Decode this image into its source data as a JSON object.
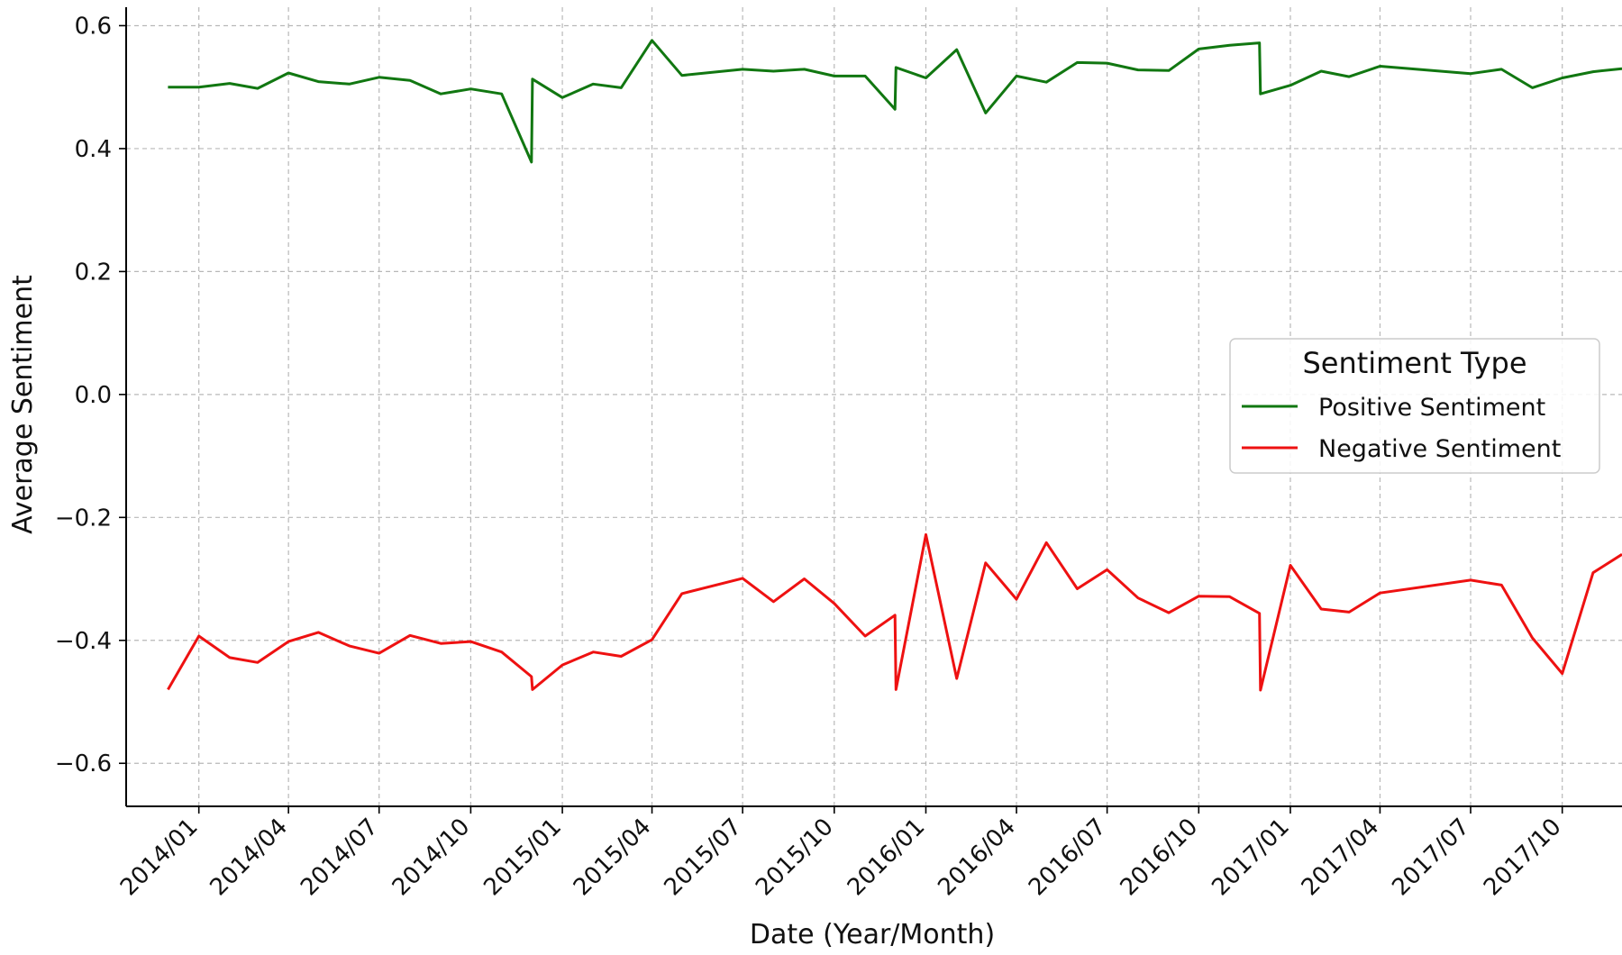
{
  "chart_data": {
    "type": "line",
    "title": "",
    "xlabel": "Date (Year/Month)",
    "ylabel": "Average Sentiment",
    "ylim": [
      -0.67,
      0.63
    ],
    "yticks": [
      0.6,
      0.4,
      0.2,
      0.0,
      -0.2,
      -0.4,
      -0.6
    ],
    "ytick_labels": [
      "0.6",
      "0.4",
      "0.2",
      "0.0",
      "−0.2",
      "−0.4",
      "−0.6"
    ],
    "xlim": [
      "2013-10-20",
      "2017-11-30"
    ],
    "xticks": [
      "2014-01-01",
      "2014-04-01",
      "2014-07-01",
      "2014-10-01",
      "2015-01-01",
      "2015-04-01",
      "2015-07-01",
      "2015-10-01",
      "2016-01-01",
      "2016-04-01",
      "2016-07-01",
      "2016-10-01",
      "2017-01-01",
      "2017-04-01",
      "2017-07-01",
      "2017-10-01"
    ],
    "xtick_labels": [
      "2014/01",
      "2014/04",
      "2014/07",
      "2014/10",
      "2015/01",
      "2015/04",
      "2015/07",
      "2015/10",
      "2016/01",
      "2016/04",
      "2016/07",
      "2016/10",
      "2017/01",
      "2017/04",
      "2017/07",
      "2017/10"
    ],
    "grid": true,
    "legend": {
      "title": "Sentiment Type",
      "placement": "center-right"
    },
    "series": [
      {
        "name": "Positive Sentiment",
        "color": "#117711",
        "points": [
          [
            "2013-12-01",
            0.5
          ],
          [
            "2014-01-01",
            0.5
          ],
          [
            "2014-02-01",
            0.506
          ],
          [
            "2014-03-01",
            0.498
          ],
          [
            "2014-04-01",
            0.523
          ],
          [
            "2014-05-01",
            0.509
          ],
          [
            "2014-06-01",
            0.505
          ],
          [
            "2014-07-01",
            0.516
          ],
          [
            "2014-08-01",
            0.511
          ],
          [
            "2014-09-01",
            0.489
          ],
          [
            "2014-10-01",
            0.497
          ],
          [
            "2014-11-01",
            0.489
          ],
          [
            "2014-12-01",
            0.378
          ],
          [
            "2014-12-02",
            0.513
          ],
          [
            "2015-01-01",
            0.483
          ],
          [
            "2015-02-01",
            0.505
          ],
          [
            "2015-03-01",
            0.499
          ],
          [
            "2015-04-01",
            0.576
          ],
          [
            "2015-05-01",
            0.519
          ],
          [
            "2015-07-01",
            0.529
          ],
          [
            "2015-08-01",
            0.526
          ],
          [
            "2015-09-01",
            0.529
          ],
          [
            "2015-10-01",
            0.518
          ],
          [
            "2015-11-01",
            0.518
          ],
          [
            "2015-12-01",
            0.464
          ],
          [
            "2015-12-02",
            0.532
          ],
          [
            "2016-01-01",
            0.515
          ],
          [
            "2016-02-01",
            0.561
          ],
          [
            "2016-03-01",
            0.458
          ],
          [
            "2016-04-01",
            0.518
          ],
          [
            "2016-05-01",
            0.508
          ],
          [
            "2016-06-01",
            0.54
          ],
          [
            "2016-07-01",
            0.539
          ],
          [
            "2016-08-01",
            0.528
          ],
          [
            "2016-09-01",
            0.527
          ],
          [
            "2016-10-01",
            0.562
          ],
          [
            "2016-11-01",
            0.568
          ],
          [
            "2016-12-01",
            0.572
          ],
          [
            "2016-12-02",
            0.489
          ],
          [
            "2017-01-01",
            0.503
          ],
          [
            "2017-02-01",
            0.526
          ],
          [
            "2017-03-01",
            0.517
          ],
          [
            "2017-04-01",
            0.534
          ],
          [
            "2017-07-01",
            0.522
          ],
          [
            "2017-08-01",
            0.529
          ],
          [
            "2017-09-01",
            0.499
          ],
          [
            "2017-10-01",
            0.515
          ],
          [
            "2017-11-01",
            0.525
          ],
          [
            "2017-11-30",
            0.53
          ]
        ]
      },
      {
        "name": "Negative Sentiment",
        "color": "#ee1111",
        "points": [
          [
            "2013-12-01",
            -0.48
          ],
          [
            "2014-01-01",
            -0.393
          ],
          [
            "2014-02-01",
            -0.428
          ],
          [
            "2014-03-01",
            -0.436
          ],
          [
            "2014-04-01",
            -0.402
          ],
          [
            "2014-05-01",
            -0.387
          ],
          [
            "2014-06-01",
            -0.409
          ],
          [
            "2014-07-01",
            -0.421
          ],
          [
            "2014-08-01",
            -0.392
          ],
          [
            "2014-09-01",
            -0.405
          ],
          [
            "2014-10-01",
            -0.402
          ],
          [
            "2014-11-01",
            -0.419
          ],
          [
            "2014-12-01",
            -0.459
          ],
          [
            "2014-12-02",
            -0.48
          ],
          [
            "2015-01-01",
            -0.44
          ],
          [
            "2015-02-01",
            -0.419
          ],
          [
            "2015-03-01",
            -0.426
          ],
          [
            "2015-04-01",
            -0.399
          ],
          [
            "2015-05-01",
            -0.324
          ],
          [
            "2015-07-01",
            -0.299
          ],
          [
            "2015-08-01",
            -0.337
          ],
          [
            "2015-09-01",
            -0.3
          ],
          [
            "2015-10-01",
            -0.34
          ],
          [
            "2015-11-01",
            -0.393
          ],
          [
            "2015-12-01",
            -0.359
          ],
          [
            "2015-12-02",
            -0.48
          ],
          [
            "2016-01-01",
            -0.228
          ],
          [
            "2016-02-01",
            -0.462
          ],
          [
            "2016-03-01",
            -0.274
          ],
          [
            "2016-04-01",
            -0.333
          ],
          [
            "2016-05-01",
            -0.241
          ],
          [
            "2016-06-01",
            -0.316
          ],
          [
            "2016-07-01",
            -0.285
          ],
          [
            "2016-08-01",
            -0.331
          ],
          [
            "2016-09-01",
            -0.355
          ],
          [
            "2016-10-01",
            -0.328
          ],
          [
            "2016-11-01",
            -0.329
          ],
          [
            "2016-12-01",
            -0.356
          ],
          [
            "2016-12-02",
            -0.481
          ],
          [
            "2017-01-01",
            -0.278
          ],
          [
            "2017-02-01",
            -0.349
          ],
          [
            "2017-03-01",
            -0.354
          ],
          [
            "2017-04-01",
            -0.323
          ],
          [
            "2017-07-01",
            -0.302
          ],
          [
            "2017-08-01",
            -0.31
          ],
          [
            "2017-09-01",
            -0.396
          ],
          [
            "2017-10-01",
            -0.454
          ],
          [
            "2017-11-01",
            -0.29
          ],
          [
            "2017-11-30",
            -0.26
          ]
        ]
      }
    ]
  }
}
